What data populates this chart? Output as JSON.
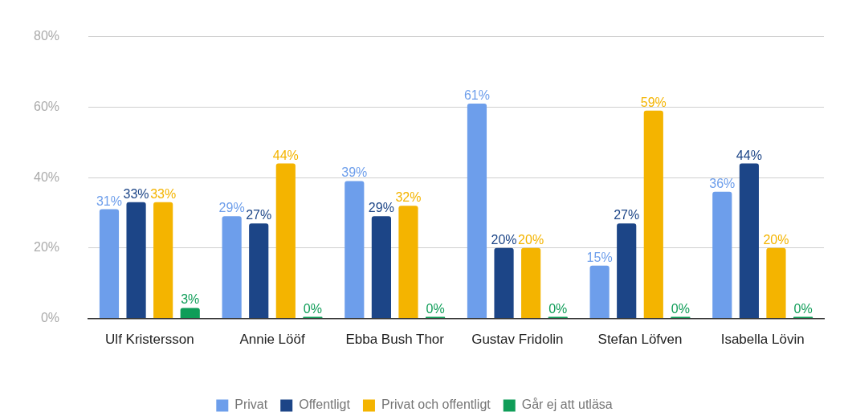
{
  "chart_data": {
    "type": "bar",
    "categories": [
      "Ulf Kristersson",
      "Annie Lööf",
      "Ebba Bush Thor",
      "Gustav Fridolin",
      "Stefan Löfven",
      "Isabella Lövin"
    ],
    "series": [
      {
        "name": "Privat",
        "color": "#6d9eeb",
        "values": [
          31,
          29,
          39,
          61,
          15,
          36
        ],
        "value_labels": [
          "31%",
          "29%",
          "39%",
          "61%",
          "15%",
          "36%"
        ]
      },
      {
        "name": "Offentligt",
        "color": "#1c4587",
        "values": [
          33,
          27,
          29,
          20,
          27,
          44
        ],
        "value_labels": [
          "33%",
          "27%",
          "29%",
          "20%",
          "27%",
          "44%"
        ]
      },
      {
        "name": "Privat och offentligt",
        "color": "#f4b400",
        "values": [
          33,
          44,
          32,
          20,
          59,
          20
        ],
        "value_labels": [
          "33%",
          "44%",
          "32%",
          "20%",
          "59%",
          "20%"
        ]
      },
      {
        "name": "Går ej att utläsa",
        "color": "#0f9d58",
        "values": [
          3,
          0,
          0,
          0,
          0,
          0
        ],
        "value_labels": [
          "3%",
          "0%",
          "0%",
          "0%",
          "0%",
          "0%"
        ]
      }
    ],
    "ylim": [
      0,
      80
    ],
    "yticks": [
      {
        "value": 0,
        "label": "0%"
      },
      {
        "value": 20,
        "label": "20%"
      },
      {
        "value": 40,
        "label": "40%"
      },
      {
        "value": 60,
        "label": "60%"
      },
      {
        "value": 80,
        "label": "80%"
      }
    ],
    "grid": "y",
    "legend": "bottom"
  }
}
